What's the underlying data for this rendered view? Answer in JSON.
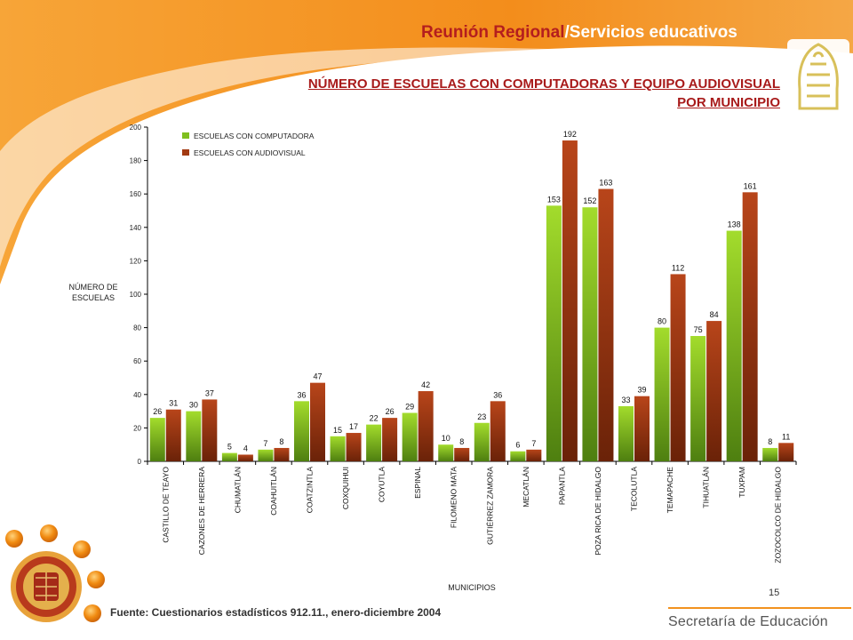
{
  "header": {
    "title_part1": "Reunión Regional",
    "title_sep": "/",
    "title_part2": "Servicios educativos"
  },
  "footer": {
    "source": "Fuente: Cuestionarios estadísticos 912.11., enero-diciembre 2004",
    "page_number": "15",
    "brand": "Secretaría de Educación"
  },
  "colors": {
    "accent_orange": "#f2921e",
    "title_red": "#a81a1a",
    "series_computer": "#7fbf1e",
    "series_audiovisual": "#a23a12"
  },
  "icons": [
    "ornamental-emblem-icon",
    "coat-of-arms-icon"
  ],
  "chart_data": {
    "type": "bar",
    "title": "NÚMERO DE ESCUELAS CON COMPUTADORAS Y EQUIPO AUDIOVISUAL POR MUNICIPIO",
    "xlabel": "MUNICIPIOS",
    "ylabel": "NÚMERO DE ESCUELAS",
    "ylim": [
      0,
      200
    ],
    "yticks": [
      0,
      20,
      40,
      60,
      80,
      100,
      120,
      140,
      160,
      180,
      200
    ],
    "legend_position": "top-left",
    "grid": false,
    "categories": [
      "CASTILLO DE TEAYO",
      "CAZONES DE HERRERA",
      "CHUMATLÁN",
      "COAHUITLÁN",
      "COATZINTLA",
      "COXQUIHUI",
      "COYUTLA",
      "ESPINAL",
      "FILOMENO MATA",
      "GUTIÉRREZ ZAMORA",
      "MECATLÁN",
      "PAPANTLA",
      "POZA RICA DE HIDALGO",
      "TECOLUTLA",
      "TEMAPACHE",
      "TIHUATLÁN",
      "TUXPAM",
      "ZOZOCOLCO DE HIDALGO"
    ],
    "series": [
      {
        "name": "ESCUELAS CON COMPUTADORA",
        "values": [
          26,
          30,
          5,
          7,
          36,
          15,
          22,
          29,
          10,
          23,
          6,
          153,
          152,
          33,
          80,
          75,
          138,
          8
        ]
      },
      {
        "name": "ESCUELAS CON AUDIOVISUAL",
        "values": [
          31,
          37,
          4,
          8,
          47,
          17,
          26,
          42,
          8,
          36,
          7,
          192,
          163,
          39,
          112,
          84,
          161,
          11
        ]
      }
    ]
  }
}
